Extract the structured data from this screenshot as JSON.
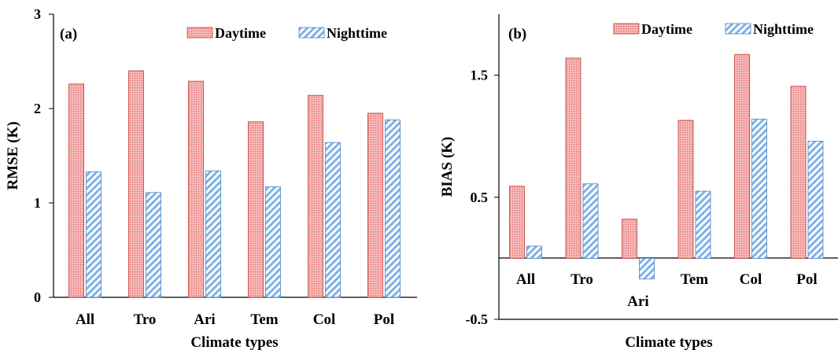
{
  "colors": {
    "daytime_fill": "#f6b8b8",
    "daytime_stroke": "#c0392b",
    "nighttime_fill": "#ffffff",
    "nighttime_stripe": "#7fb2e5",
    "nighttime_stroke": "#4a86c5"
  },
  "chart_data": [
    {
      "type": "bar",
      "panel_label": "(a)",
      "categories": [
        "All",
        "Tro",
        "Ari",
        "Tem",
        "Col",
        "Pol"
      ],
      "series": [
        {
          "name": "Daytime",
          "values": [
            2.26,
            2.4,
            2.29,
            1.86,
            2.14,
            1.95
          ]
        },
        {
          "name": "Nighttime",
          "values": [
            1.33,
            1.11,
            1.34,
            1.17,
            1.64,
            1.88
          ]
        }
      ],
      "xlabel": "Climate types",
      "ylabel": "RMSE (K)",
      "ylim": [
        0,
        3
      ],
      "yticks": [
        "0",
        "1",
        "2",
        "3"
      ],
      "legend": "top-right",
      "grid": false
    },
    {
      "type": "bar",
      "panel_label": "(b)",
      "categories": [
        "All",
        "Tro",
        "Ari",
        "Tem",
        "Col",
        "Pol"
      ],
      "series": [
        {
          "name": "Daytime",
          "values": [
            0.59,
            1.64,
            0.32,
            1.13,
            1.67,
            1.41
          ]
        },
        {
          "name": "Nighttime",
          "values": [
            0.1,
            0.61,
            -0.17,
            0.55,
            1.14,
            0.96
          ]
        }
      ],
      "xlabel": "Climate types",
      "ylabel": "BIAS (K)",
      "ylim": [
        -0.5,
        2
      ],
      "yticks": [
        "-0.5",
        "0.5",
        "1.5"
      ],
      "legend": "top-right",
      "grid": false
    }
  ]
}
